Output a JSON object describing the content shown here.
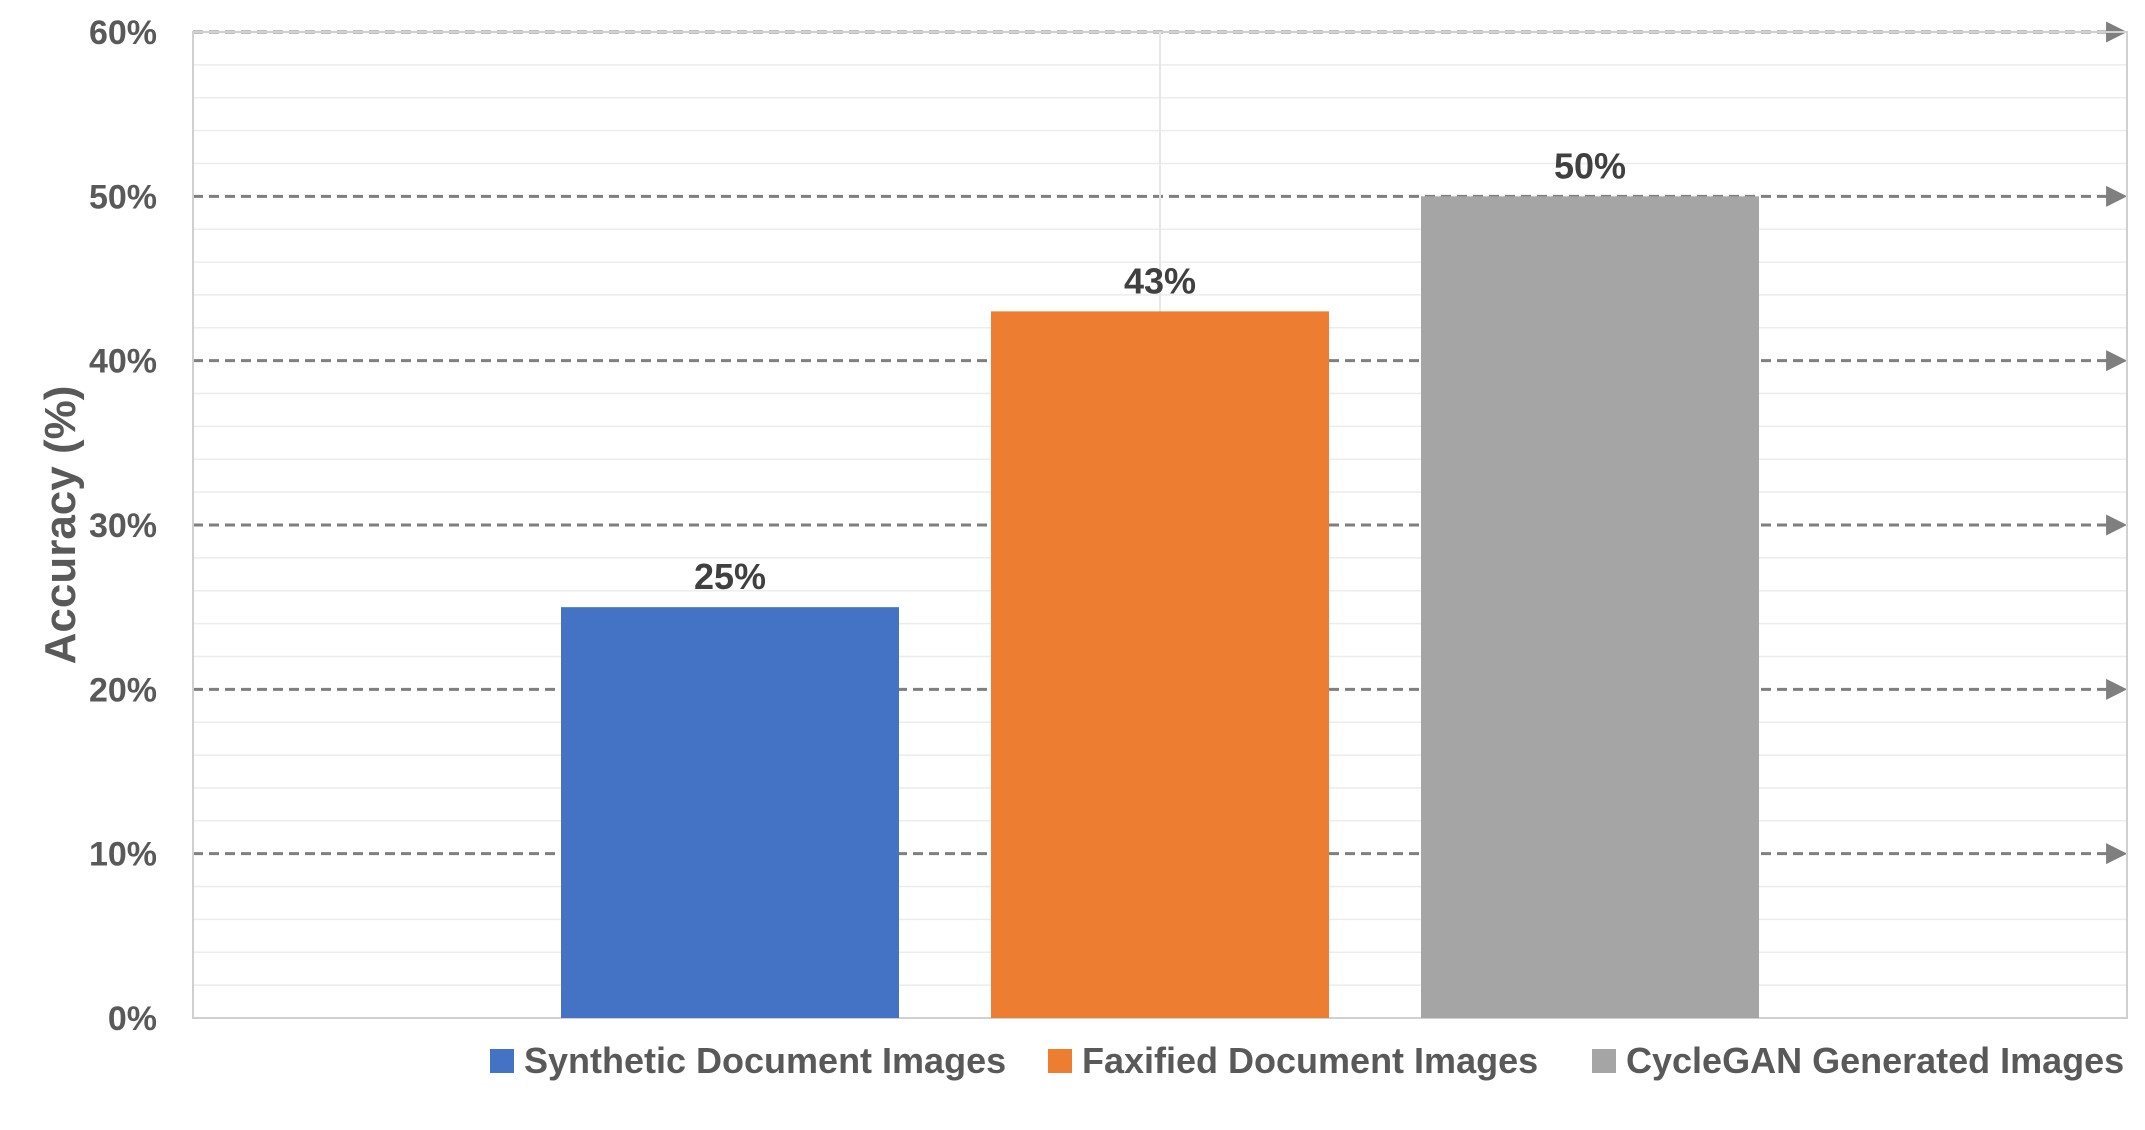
{
  "chart_data": {
    "type": "bar",
    "title": "",
    "xlabel": "",
    "ylabel": "Accuracy (%)",
    "ylim": [
      0,
      60
    ],
    "yticks": [
      "0%",
      "10%",
      "20%",
      "30%",
      "40%",
      "50%",
      "60%"
    ],
    "grid": true,
    "legend_position": "bottom",
    "series": [
      {
        "name": "Synthetic Document Images",
        "value": 25,
        "label": "25%",
        "color": "#4472C4"
      },
      {
        "name": "Faxified Document Images",
        "value": 43,
        "label": "43%",
        "color": "#ED7D31"
      },
      {
        "name": "CycleGAN Generated Images",
        "value": 50,
        "label": "50%",
        "color": "#A5A5A5"
      }
    ]
  }
}
